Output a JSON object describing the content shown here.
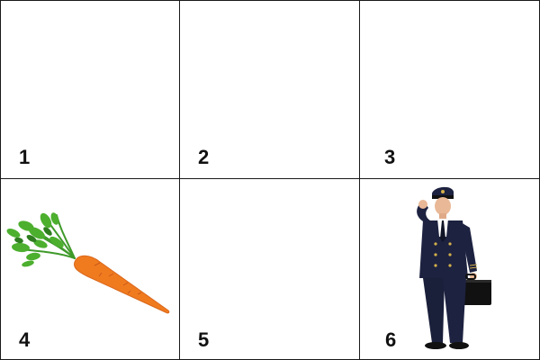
{
  "cells": [
    {
      "number": "1",
      "picture": ""
    },
    {
      "number": "2",
      "picture": ""
    },
    {
      "number": "3",
      "picture": ""
    },
    {
      "number": "4",
      "picture": "carrot-icon"
    },
    {
      "number": "5",
      "picture": ""
    },
    {
      "number": "6",
      "picture": "pilot-with-briefcase-icon"
    }
  ],
  "colors": {
    "grid_line": "#1a1a1a",
    "carrot": "#f07b1f",
    "carrot_leaves": "#3f9a2a",
    "uniform": "#1d2240"
  }
}
